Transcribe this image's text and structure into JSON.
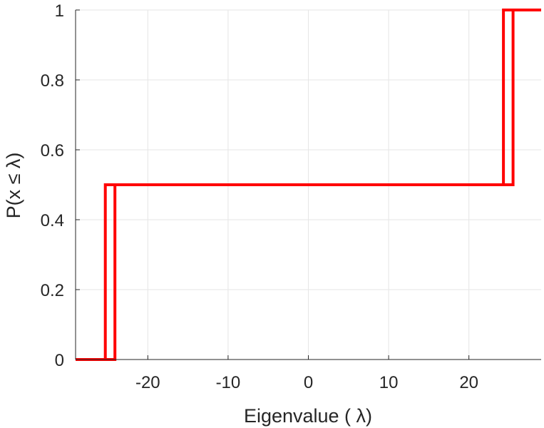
{
  "chart_data": {
    "type": "line",
    "xlabel": "Eigenvalue (  λ)",
    "ylabel": "P(x ≤ λ)",
    "xlim": [
      -29,
      29
    ],
    "ylim": [
      0,
      1
    ],
    "x_ticks": [
      -20,
      -10,
      0,
      10,
      20
    ],
    "x_tick_labels": [
      "-20",
      "-10",
      "0",
      "10",
      "20"
    ],
    "y_ticks": [
      0,
      0.2,
      0.4,
      0.6,
      0.8,
      1
    ],
    "y_tick_labels": [
      "0",
      "0.2",
      "0.4",
      "0.6",
      "0.8",
      "1"
    ],
    "grid": true,
    "line_color": "#ff0000",
    "series": [
      {
        "x": [
          -29,
          -25.3,
          -25.3,
          24.3,
          24.3,
          29
        ],
        "y": [
          0,
          0,
          0.5,
          0.5,
          1,
          1
        ]
      },
      {
        "x": [
          -29,
          -24.1,
          -24.1,
          25.5,
          25.5,
          29
        ],
        "y": [
          0,
          0,
          0.5,
          0.5,
          1,
          1
        ]
      }
    ]
  }
}
